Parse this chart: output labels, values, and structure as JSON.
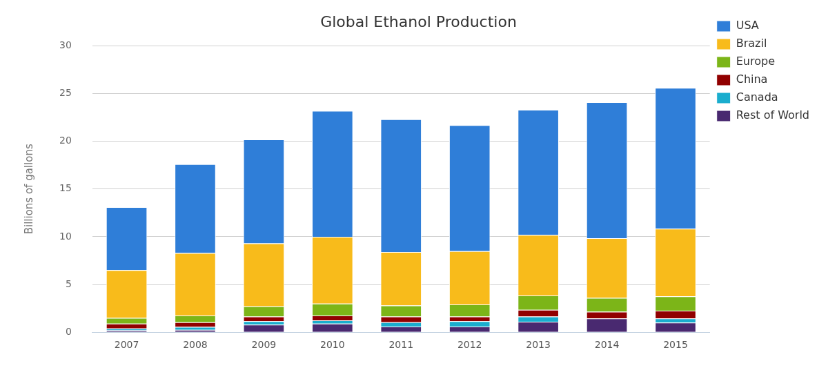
{
  "chart_data": {
    "type": "bar",
    "title": "Global Ethanol Production",
    "ylabel": "Billions of gallons",
    "categories": [
      "2007",
      "2008",
      "2009",
      "2010",
      "2011",
      "2012",
      "2013",
      "2014",
      "2015"
    ],
    "stacked": true,
    "ylim": [
      0,
      30
    ],
    "yticks": [
      0,
      5,
      10,
      15,
      20,
      25,
      30
    ],
    "grid": "y",
    "legend": "right",
    "series": [
      {
        "name": "Rest of World",
        "color": "#492970",
        "values": [
          0.2,
          0.25,
          0.8,
          0.9,
          0.6,
          0.6,
          1.1,
          1.45,
          1.0
        ]
      },
      {
        "name": "Canada",
        "color": "#1aadce",
        "values": [
          0.2,
          0.3,
          0.35,
          0.35,
          0.45,
          0.55,
          0.55,
          0,
          0.45
        ]
      },
      {
        "name": "China",
        "color": "#910000",
        "values": [
          0.5,
          0.5,
          0.5,
          0.5,
          0.6,
          0.5,
          0.7,
          0.7,
          0.8
        ]
      },
      {
        "name": "Europe",
        "color": "#7cb518",
        "values": [
          0.6,
          0.7,
          1.05,
          1.25,
          1.15,
          1.25,
          1.5,
          1.45,
          1.5
        ]
      },
      {
        "name": "Brazil",
        "color": "#f8bb1b",
        "values": [
          5.0,
          6.55,
          6.6,
          7.0,
          5.6,
          5.6,
          6.35,
          6.25,
          7.1
        ]
      },
      {
        "name": "USA",
        "color": "#2f7ed8",
        "values": [
          6.6,
          9.3,
          10.9,
          13.2,
          13.9,
          13.2,
          13.1,
          14.25,
          14.75
        ]
      }
    ]
  }
}
